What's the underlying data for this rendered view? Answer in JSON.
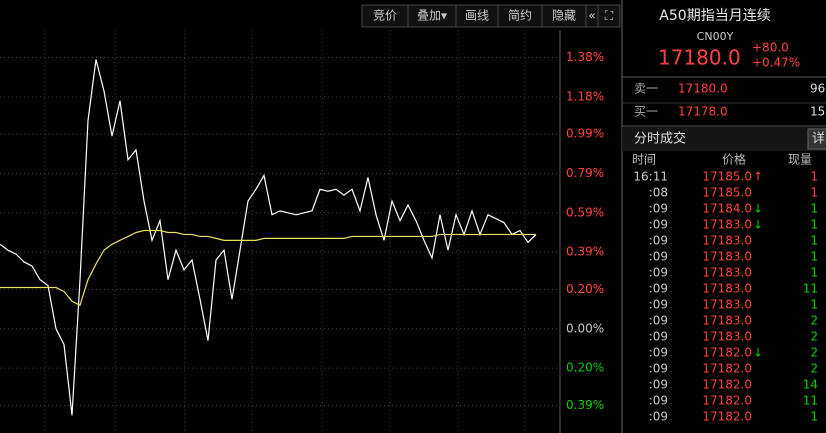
{
  "toolbar": [
    "竞价",
    "叠加▾",
    "画线",
    "简约",
    "隐藏",
    "«",
    "⛶"
  ],
  "quote": {
    "name": "A50期指当月连续",
    "code": "CN00Y",
    "price": "17180.0",
    "change": "+80.0",
    "change_pct": "+0.47%"
  },
  "order_book": [
    {
      "side": "卖一",
      "price": "17180.0",
      "volume": "96"
    },
    {
      "side": "买一",
      "price": "17178.0",
      "volume": "15"
    }
  ],
  "trades": {
    "title": "分时成交",
    "detail": "详",
    "headers": [
      "时间",
      "价格",
      "现量"
    ],
    "rows": [
      {
        "time": "16:11",
        "price": "17185.0",
        "arrow": "↑",
        "volume": "1",
        "color": "#ff4040"
      },
      {
        "time": ":08",
        "price": "17185.0",
        "volume": "1",
        "color": "#ff4040"
      },
      {
        "time": ":09",
        "price": "17184.0",
        "arrow": "↓",
        "volume": "1",
        "color": "#00d000"
      },
      {
        "time": ":09",
        "price": "17183.0",
        "arrow": "↓",
        "volume": "1",
        "color": "#00d000"
      },
      {
        "time": ":09",
        "price": "17183.0",
        "volume": "1",
        "color": "#00d000"
      },
      {
        "time": ":09",
        "price": "17183.0",
        "volume": "1",
        "color": "#00d000"
      },
      {
        "time": ":09",
        "price": "17183.0",
        "volume": "1",
        "color": "#00d000"
      },
      {
        "time": ":09",
        "price": "17183.0",
        "volume": "11",
        "color": "#00d000"
      },
      {
        "time": ":09",
        "price": "17183.0",
        "volume": "1",
        "color": "#00d000"
      },
      {
        "time": ":09",
        "price": "17183.0",
        "volume": "2",
        "color": "#00d000"
      },
      {
        "time": ":09",
        "price": "17183.0",
        "volume": "2",
        "color": "#00d000"
      },
      {
        "time": ":09",
        "price": "17182.0",
        "arrow": "↓",
        "volume": "2",
        "color": "#00d000"
      },
      {
        "time": ":09",
        "price": "17182.0",
        "volume": "2",
        "color": "#00d000"
      },
      {
        "time": ":09",
        "price": "17182.0",
        "volume": "14",
        "color": "#00d000"
      },
      {
        "time": ":09",
        "price": "17182.0",
        "volume": "11",
        "color": "#00d000"
      },
      {
        "time": ":09",
        "price": "17182.0",
        "volume": "1",
        "color": "#00d000"
      }
    ]
  },
  "chart_data": {
    "type": "line",
    "up_color": "#ff4040",
    "down_color": "#00d000",
    "zero_color": "#c8c8c8",
    "grid": true,
    "xlim": [
      0,
      70
    ],
    "ylim": [
      -0.53,
      1.52
    ],
    "yticks": [
      {
        "value": 1.38,
        "label": "1.38%"
      },
      {
        "value": 1.18,
        "label": "1.18%"
      },
      {
        "value": 0.99,
        "label": "0.99%"
      },
      {
        "value": 0.79,
        "label": "0.79%"
      },
      {
        "value": 0.59,
        "label": "0.59%"
      },
      {
        "value": 0.39,
        "label": "0.39%"
      },
      {
        "value": 0.2,
        "label": "0.20%"
      },
      {
        "value": 0.0,
        "label": "0.00%"
      },
      {
        "value": -0.2,
        "label": "0.20%"
      },
      {
        "value": -0.39,
        "label": "0.39%"
      }
    ],
    "series": [
      {
        "color": "#ffffff",
        "values": [
          0.43,
          0.4,
          0.38,
          0.34,
          0.32,
          0.25,
          0.22,
          0.0,
          -0.08,
          -0.44,
          0.25,
          1.06,
          1.37,
          1.21,
          0.98,
          1.16,
          0.86,
          0.91,
          0.65,
          0.45,
          0.55,
          0.25,
          0.4,
          0.3,
          0.35,
          0.15,
          -0.06,
          0.35,
          0.4,
          0.15,
          0.4,
          0.65,
          0.71,
          0.78,
          0.58,
          0.6,
          0.59,
          0.58,
          0.59,
          0.6,
          0.71,
          0.7,
          0.71,
          0.68,
          0.71,
          0.6,
          0.77,
          0.58,
          0.45,
          0.65,
          0.55,
          0.63,
          0.55,
          0.45,
          0.36,
          0.58,
          0.4,
          0.58,
          0.48,
          0.6,
          0.48,
          0.58,
          0.56,
          0.54,
          0.48,
          0.5,
          0.44,
          0.48
        ]
      },
      {
        "color": "#e8e060",
        "values": [
          0.21,
          0.21,
          0.21,
          0.21,
          0.21,
          0.21,
          0.21,
          0.21,
          0.19,
          0.14,
          0.12,
          0.25,
          0.33,
          0.4,
          0.43,
          0.45,
          0.47,
          0.49,
          0.5,
          0.5,
          0.5,
          0.49,
          0.49,
          0.48,
          0.48,
          0.47,
          0.47,
          0.46,
          0.45,
          0.45,
          0.45,
          0.45,
          0.45,
          0.46,
          0.46,
          0.46,
          0.46,
          0.46,
          0.46,
          0.46,
          0.46,
          0.46,
          0.46,
          0.46,
          0.47,
          0.47,
          0.47,
          0.47,
          0.47,
          0.47,
          0.47,
          0.47,
          0.47,
          0.47,
          0.47,
          0.48,
          0.48,
          0.48,
          0.48,
          0.48,
          0.48,
          0.48,
          0.48,
          0.48,
          0.48,
          0.48,
          0.48,
          0.48
        ]
      }
    ]
  }
}
